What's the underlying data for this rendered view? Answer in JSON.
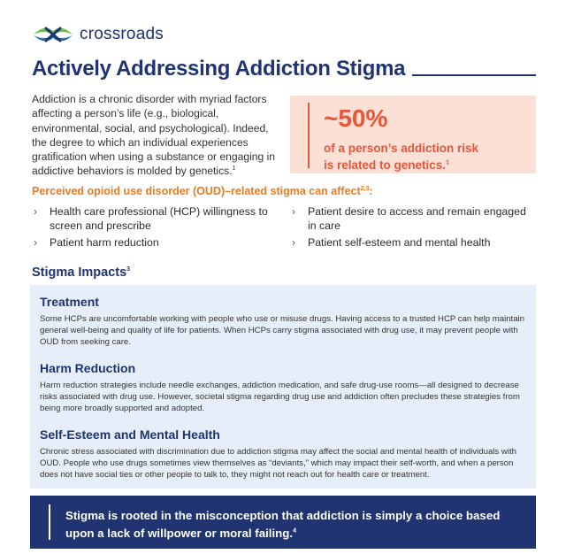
{
  "brand": {
    "name": "crossroads",
    "logo_icon": "crossroads-logo-icon"
  },
  "header": {
    "title": "Actively Addressing Addiction Stigma"
  },
  "intro": {
    "text": "Addiction is a chronic disorder with myriad factors affecting a person’s life (e.g., biological, environmental, social, and psychological). Indeed, the degree to which an individual experiences gratification when using a substance or engaging in addictive behaviors is molded by genetics.",
    "ref": "1"
  },
  "stat": {
    "value": "~50%",
    "line1": "of a person’s addiction risk",
    "line2": "is related to genetics.",
    "ref": "1"
  },
  "oud": {
    "heading": "Perceived opioid use disorder (OUD)–related stigma can affect",
    "ref": "2,3",
    "suffix": ":",
    "left_items": [
      "Health care professional (HCP) willingness to screen and prescribe",
      "Patient harm reduction"
    ],
    "right_items": [
      "Patient desire to access and remain engaged in care",
      "Patient self-esteem and mental health"
    ],
    "bullet_glyph": "›"
  },
  "impacts": {
    "heading": "Stigma Impacts",
    "ref": "3",
    "sections": [
      {
        "title": "Treatment",
        "body": "Some HCPs are uncomfortable working with people who use or misuse drugs. Having access to a trusted HCP can help maintain general well-being and quality of life for patients. When HCPs carry stigma associated with drug use, it may prevent people with OUD from seeking care."
      },
      {
        "title": "Harm Reduction",
        "body": "Harm reduction strategies include needle exchanges, addiction medication, and safe drug-use rooms—all designed to decrease risks associated with drug use. However, societal stigma regarding drug use and addiction often precludes these strategies from being more broadly supported and adopted."
      },
      {
        "title": "Self-Esteem and Mental Health",
        "body": "Chronic stress associated with discrimination due to addiction stigma may affect the social and mental health of individuals with OUD. People who use drugs sometimes view themselves as “deviants,” which may impact their self-worth, and when a person does not have social ties or other people to talk to, they might not reach out for health care or treatment."
      }
    ]
  },
  "banner": {
    "text": "Stigma is rooted in the misconception that addiction is simply a choice based upon a lack of willpower or moral failing.",
    "ref": "4"
  },
  "colors": {
    "navy": "#1f3470",
    "orange": "#ec7a1e",
    "coral": "#e8553a",
    "peach_bg": "#fbe0d6",
    "light_blue_bg": "#e6eff9",
    "logo_green": "#6cc04a",
    "logo_blue": "#1f6fb8"
  }
}
